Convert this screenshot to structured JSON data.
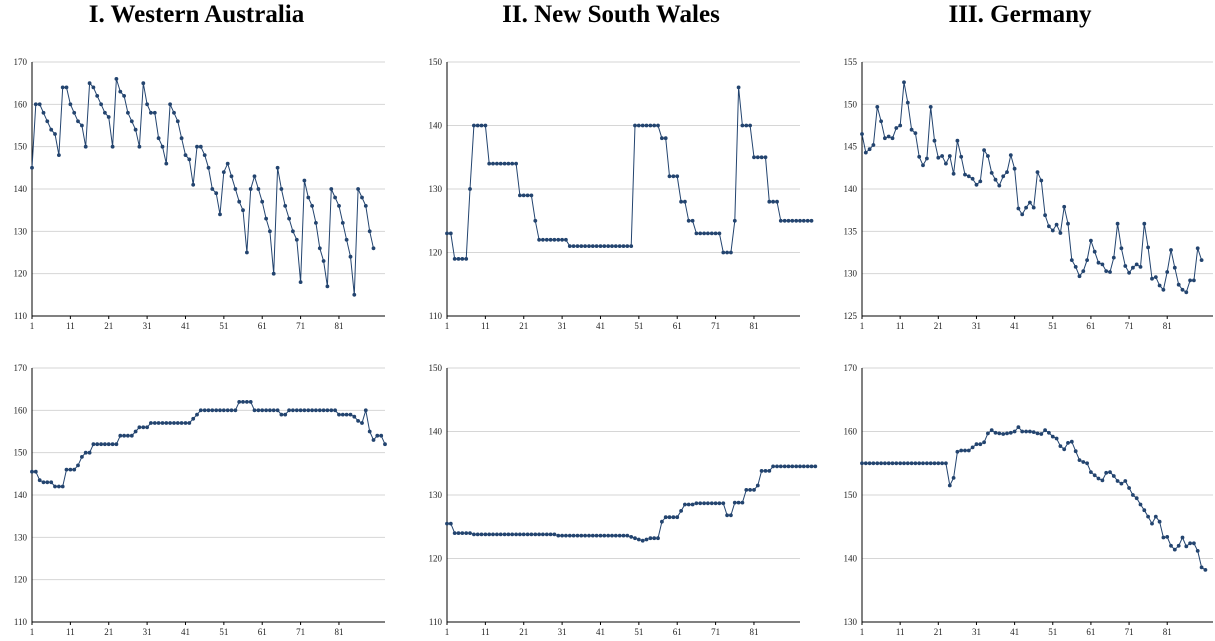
{
  "titles": [
    "I. Western Australia",
    "II. New South Wales",
    "III. Germany"
  ],
  "colors": {
    "series": "#23446f",
    "grid": "#d6d6d6",
    "axis": "#000000"
  },
  "chart_data": [
    {
      "type": "line",
      "panel": "western-australia-top",
      "x_start": 1,
      "x_ticks": [
        1,
        11,
        21,
        31,
        41,
        51,
        61,
        71,
        81
      ],
      "ylim": [
        110,
        170
      ],
      "y_ticks": [
        110,
        120,
        130,
        140,
        150,
        160,
        170
      ],
      "grid": true,
      "series": [
        {
          "values": [
            145,
            160,
            160,
            158,
            156,
            154,
            153,
            148,
            164,
            164,
            160,
            158,
            156,
            155,
            150,
            165,
            164,
            162,
            160,
            158,
            157,
            150,
            166,
            163,
            162,
            158,
            156,
            154,
            150,
            165,
            160,
            158,
            158,
            152,
            150,
            146,
            160,
            158,
            156,
            152,
            148,
            147,
            141,
            150,
            150,
            148,
            145,
            140,
            139,
            134,
            144,
            146,
            143,
            140,
            137,
            135,
            125,
            140,
            143,
            140,
            137,
            133,
            130,
            120,
            145,
            140,
            136,
            133,
            130,
            128,
            118,
            142,
            138,
            136,
            132,
            126,
            123,
            117,
            140,
            138,
            136,
            132,
            128,
            124,
            115,
            140,
            138,
            136,
            130,
            126
          ]
        }
      ]
    },
    {
      "type": "line",
      "panel": "western-australia-bottom",
      "x_start": 1,
      "x_ticks": [
        1,
        11,
        21,
        31,
        41,
        51,
        61,
        71,
        81
      ],
      "ylim": [
        110,
        170
      ],
      "y_ticks": [
        110,
        120,
        130,
        140,
        150,
        160,
        170
      ],
      "grid": true,
      "series": [
        {
          "values": [
            145.5,
            145.5,
            143.5,
            143,
            143,
            143,
            142,
            142,
            142,
            146,
            146,
            146,
            147,
            149,
            150,
            150,
            152,
            152,
            152,
            152,
            152,
            152,
            152,
            154,
            154,
            154,
            154,
            155,
            156,
            156,
            156,
            157,
            157,
            157,
            157,
            157,
            157,
            157,
            157,
            157,
            157,
            157,
            158,
            159,
            160,
            160,
            160,
            160,
            160,
            160,
            160,
            160,
            160,
            160,
            162,
            162,
            162,
            162,
            160,
            160,
            160,
            160,
            160,
            160,
            160,
            159,
            159,
            160,
            160,
            160,
            160,
            160,
            160,
            160,
            160,
            160,
            160,
            160,
            160,
            160,
            159,
            159,
            159,
            159,
            158.5,
            157.5,
            157,
            160,
            155,
            153,
            154,
            154,
            152
          ]
        }
      ]
    },
    {
      "type": "line",
      "panel": "new-south-wales-top",
      "x_start": 1,
      "x_ticks": [
        1,
        11,
        21,
        31,
        41,
        51,
        61,
        71,
        81
      ],
      "ylim": [
        110,
        150
      ],
      "y_ticks": [
        110,
        120,
        130,
        140,
        150
      ],
      "grid": true,
      "series": [
        {
          "values": [
            123,
            123,
            119,
            119,
            119,
            119,
            130,
            140,
            140,
            140,
            140,
            134,
            134,
            134,
            134,
            134,
            134,
            134,
            134,
            129,
            129,
            129,
            129,
            125,
            122,
            122,
            122,
            122,
            122,
            122,
            122,
            122,
            121,
            121,
            121,
            121,
            121,
            121,
            121,
            121,
            121,
            121,
            121,
            121,
            121,
            121,
            121,
            121,
            121,
            140,
            140,
            140,
            140,
            140,
            140,
            140,
            138,
            138,
            132,
            132,
            132,
            128,
            128,
            125,
            125,
            123,
            123,
            123,
            123,
            123,
            123,
            123,
            120,
            120,
            120,
            125,
            146,
            140,
            140,
            140,
            135,
            135,
            135,
            135,
            128,
            128,
            128,
            125,
            125,
            125,
            125,
            125,
            125,
            125,
            125,
            125
          ]
        }
      ]
    },
    {
      "type": "line",
      "panel": "new-south-wales-bottom",
      "x_start": 1,
      "x_ticks": [
        1,
        11,
        21,
        31,
        41,
        51,
        61,
        71,
        81
      ],
      "ylim": [
        110,
        150
      ],
      "y_ticks": [
        110,
        120,
        130,
        140,
        150
      ],
      "grid": true,
      "series": [
        {
          "values": [
            125.5,
            125.5,
            124,
            124,
            124,
            124,
            124,
            123.8,
            123.8,
            123.8,
            123.8,
            123.8,
            123.8,
            123.8,
            123.8,
            123.8,
            123.8,
            123.8,
            123.8,
            123.8,
            123.8,
            123.8,
            123.8,
            123.8,
            123.8,
            123.8,
            123.8,
            123.8,
            123.8,
            123.6,
            123.6,
            123.6,
            123.6,
            123.6,
            123.6,
            123.6,
            123.6,
            123.6,
            123.6,
            123.6,
            123.6,
            123.6,
            123.6,
            123.6,
            123.6,
            123.6,
            123.6,
            123.6,
            123.4,
            123.2,
            123,
            122.8,
            123,
            123.2,
            123.2,
            123.2,
            125.8,
            126.5,
            126.5,
            126.5,
            126.5,
            127.5,
            128.5,
            128.5,
            128.5,
            128.7,
            128.7,
            128.7,
            128.7,
            128.7,
            128.7,
            128.7,
            128.7,
            126.8,
            126.8,
            128.8,
            128.8,
            128.8,
            130.8,
            130.8,
            130.8,
            131.5,
            133.8,
            133.8,
            133.8,
            134.5,
            134.5,
            134.5,
            134.5,
            134.5,
            134.5,
            134.5,
            134.5,
            134.5,
            134.5,
            134.5,
            134.5
          ]
        }
      ]
    },
    {
      "type": "line",
      "panel": "germany-top",
      "x_start": 1,
      "x_ticks": [
        1,
        11,
        21,
        31,
        41,
        51,
        61,
        71,
        81
      ],
      "ylim": [
        125,
        155
      ],
      "y_ticks": [
        125,
        130,
        135,
        140,
        145,
        150,
        155
      ],
      "grid": true,
      "series": [
        {
          "values": [
            146.5,
            144.3,
            144.7,
            145.2,
            149.7,
            148,
            146,
            146.2,
            146,
            147.2,
            147.5,
            152.6,
            150.2,
            147,
            146.6,
            143.8,
            142.8,
            143.6,
            149.7,
            145.7,
            143.7,
            143.9,
            143,
            143.9,
            141.8,
            145.7,
            143.8,
            141.7,
            141.5,
            141.2,
            140.5,
            140.9,
            144.6,
            143.9,
            141.9,
            141.1,
            140.4,
            141.5,
            142,
            144,
            142.4,
            137.7,
            137,
            137.8,
            138.4,
            137.8,
            142,
            141,
            136.9,
            135.6,
            135.1,
            135.8,
            134.8,
            137.9,
            135.9,
            131.6,
            130.8,
            129.7,
            130.3,
            131.6,
            133.9,
            132.6,
            131.3,
            131.1,
            130.3,
            130.2,
            131.9,
            135.9,
            133,
            130.9,
            130.1,
            130.7,
            131.1,
            130.8,
            135.9,
            133.1,
            129.4,
            129.6,
            128.6,
            128.1,
            130.2,
            132.8,
            130.7,
            128.7,
            128.1,
            127.8,
            129.2,
            129.2,
            133,
            131.6
          ]
        }
      ]
    },
    {
      "type": "line",
      "panel": "germany-bottom",
      "x_start": 1,
      "x_ticks": [
        1,
        11,
        21,
        31,
        41,
        51,
        61,
        71,
        81
      ],
      "ylim": [
        130,
        170
      ],
      "y_ticks": [
        130,
        140,
        150,
        160,
        170
      ],
      "grid": true,
      "series": [
        {
          "values": [
            155,
            155,
            155,
            155,
            155,
            155,
            155,
            155,
            155,
            155,
            155,
            155,
            155,
            155,
            155,
            155,
            155,
            155,
            155,
            155,
            155,
            155,
            155,
            151.5,
            152.7,
            156.8,
            157,
            157,
            157,
            157.5,
            158,
            158,
            158.3,
            159.7,
            160.2,
            159.8,
            159.7,
            159.6,
            159.7,
            159.8,
            160,
            160.7,
            160,
            160,
            160,
            159.9,
            159.7,
            159.6,
            160.2,
            159.8,
            159.2,
            158.9,
            157.7,
            157.2,
            158.2,
            158.4,
            156.9,
            155.5,
            155.2,
            155,
            153.6,
            153.1,
            152.6,
            152.3,
            153.5,
            153.6,
            153,
            152.2,
            151.8,
            152.2,
            151.1,
            150,
            149.5,
            148.5,
            147.6,
            146.6,
            145.5,
            146.6,
            145.8,
            143.3,
            143.4,
            142,
            141.4,
            142,
            143.3,
            141.9,
            142.4,
            142.4,
            141.2,
            138.6,
            138.2
          ]
        }
      ]
    }
  ]
}
